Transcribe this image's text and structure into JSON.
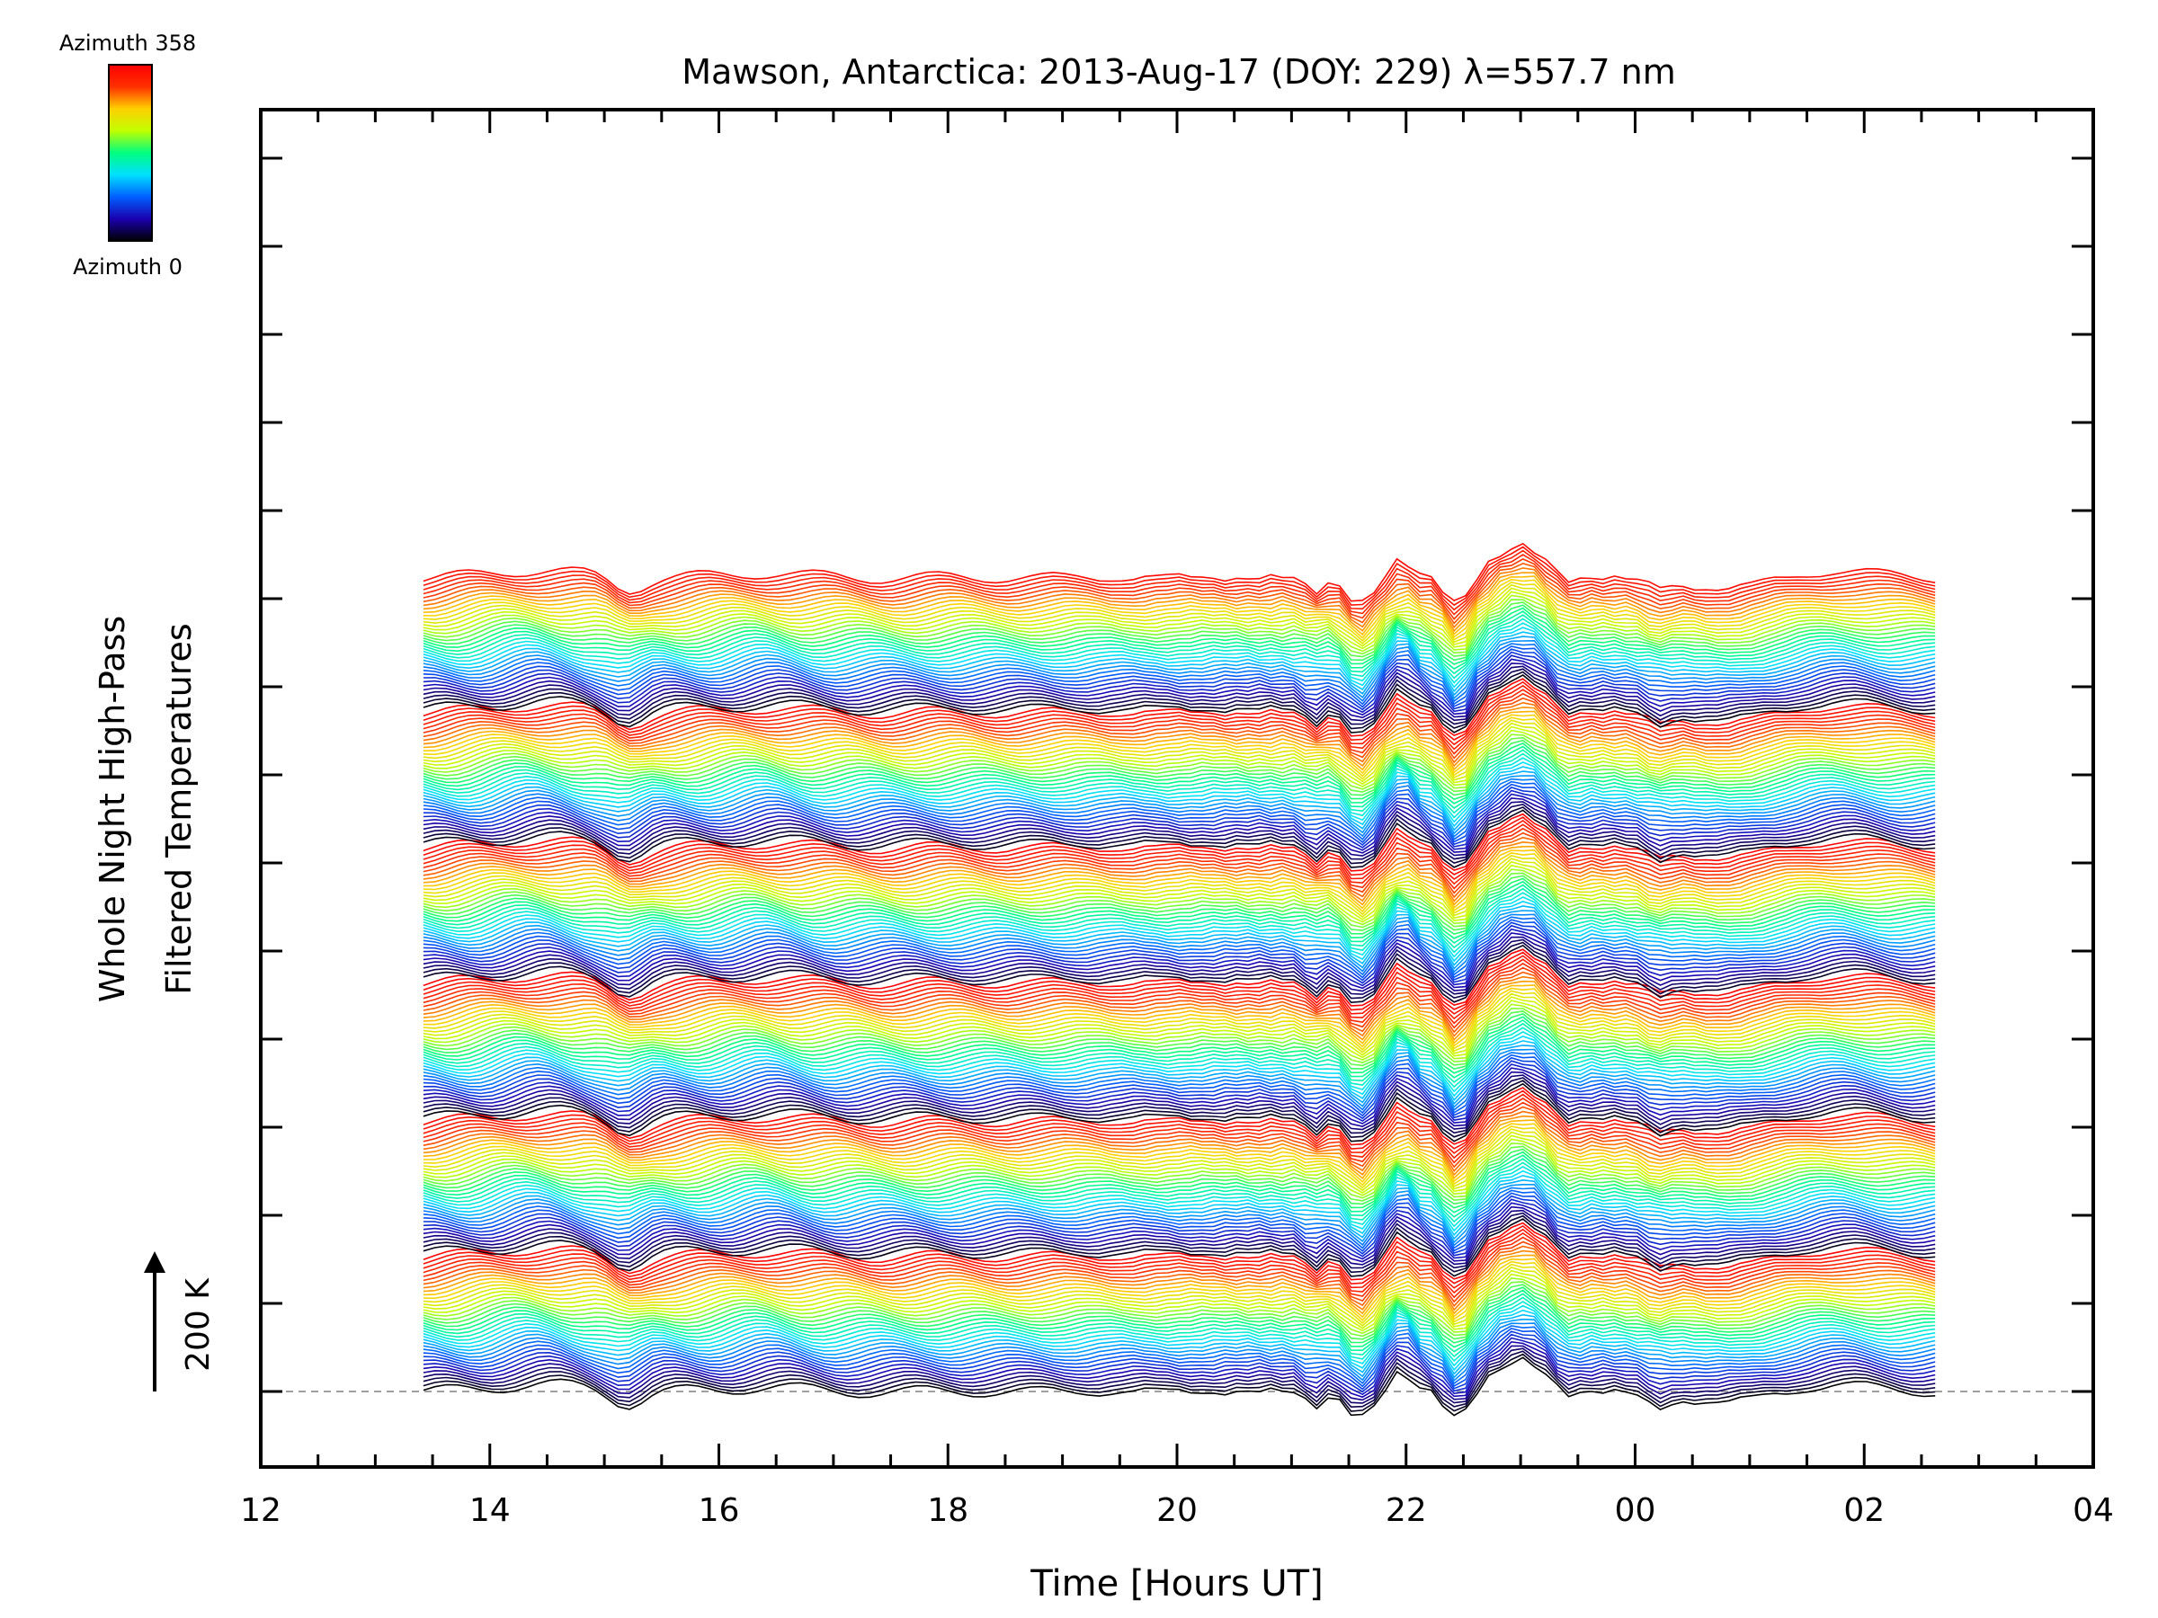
{
  "chart_data": {
    "type": "line",
    "title": "Mawson, Antarctica: 2013-Aug-17 (DOY: 229) λ=557.7 nm",
    "xlabel": "Time [Hours UT]",
    "ylabel_line1": "Whole Night High-Pass",
    "ylabel_line2": "Filtered Temperatures",
    "x_ticks": [
      "12",
      "14",
      "16",
      "18",
      "20",
      "22",
      "00",
      "02",
      "04"
    ],
    "xlim": [
      12,
      28
    ],
    "x_unit": "hours UT (values past 24 wrap to next day)",
    "data_x_range": [
      13.42,
      26.7
    ],
    "scale_bar_label": "200 K",
    "scale_bar_kelvin": 200,
    "colorbar": {
      "top_label": "Azimuth 358",
      "bottom_label": "Azimuth 0",
      "colormap": "rainbow",
      "colors": [
        "#000000",
        "#1a00b0",
        "#0060ff",
        "#00e0ff",
        "#00ff80",
        "#c0ff00",
        "#ffd000",
        "#ff3000",
        "#ff0000"
      ]
    },
    "series_count": 230,
    "series_offset_kelvin": 16,
    "azimuth_range_deg": [
      0,
      358
    ],
    "azimuth_cycles": 6,
    "baseline_dashed": true,
    "grid": false
  }
}
